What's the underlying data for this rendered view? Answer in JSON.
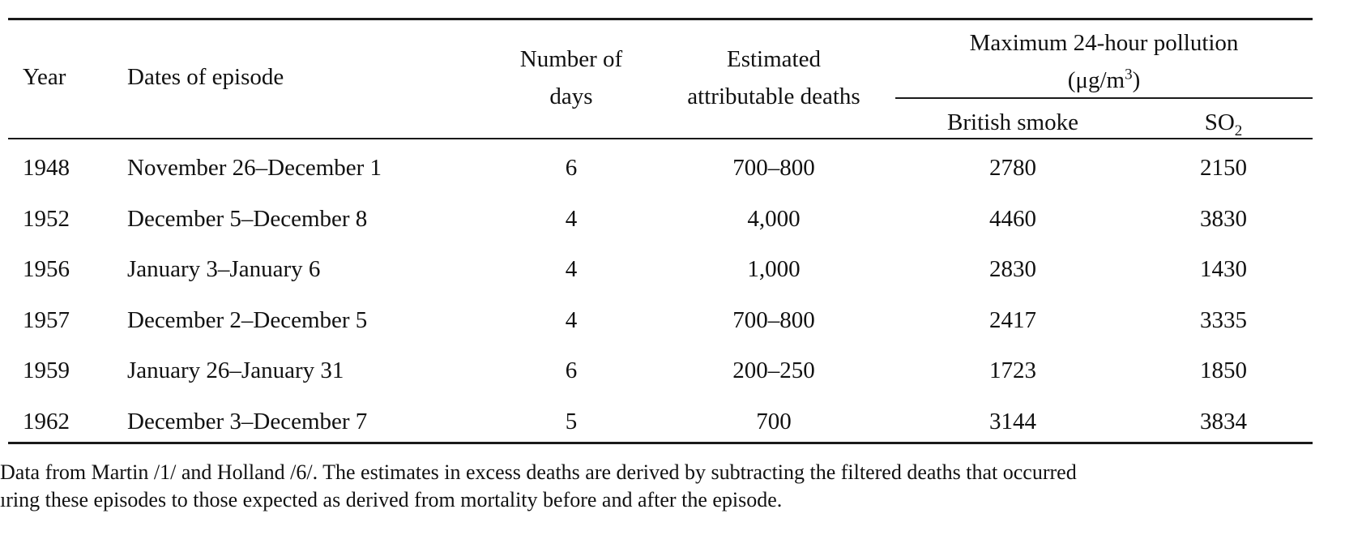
{
  "table": {
    "headers": {
      "year": "Year",
      "dates": "Dates of episode",
      "days_line1": "Number of",
      "days_line2": "days",
      "deaths_line1": "Estimated",
      "deaths_line2": "attributable deaths",
      "pollution_group_line1": "Maximum 24-hour pollution",
      "pollution_unit_open": "(μg/m",
      "pollution_unit_sup": "3",
      "pollution_unit_close": ")",
      "smoke": "British smoke",
      "so2_base": "SO",
      "so2_sub": "2"
    },
    "rows": [
      {
        "year": "1948",
        "dates": "November 26–December 1",
        "days": "6",
        "deaths": "700–800",
        "smoke": "2780",
        "so2": "2150"
      },
      {
        "year": "1952",
        "dates": "December 5–December 8",
        "days": "4",
        "deaths": "4,000",
        "smoke": "4460",
        "so2": "3830"
      },
      {
        "year": "1956",
        "dates": "January 3–January 6",
        "days": "4",
        "deaths": "1,000",
        "smoke": "2830",
        "so2": "1430"
      },
      {
        "year": "1957",
        "dates": "December 2–December 5",
        "days": "4",
        "deaths": "700–800",
        "smoke": "2417",
        "so2": "3335"
      },
      {
        "year": "1959",
        "dates": "January 26–January 31",
        "days": "6",
        "deaths": "200–250",
        "smoke": "1723",
        "so2": "1850"
      },
      {
        "year": "1962",
        "dates": "December 3–December 7",
        "days": "5",
        "deaths": "700",
        "smoke": "3144",
        "so2": "3834"
      }
    ]
  },
  "footnote": {
    "line1": "Data from Martin /1/ and Holland /6/. The estimates in excess deaths are derived by subtracting the filtered deaths that occurred",
    "line2": "ıring these episodes to those expected as derived from mortality before and after the episode."
  }
}
